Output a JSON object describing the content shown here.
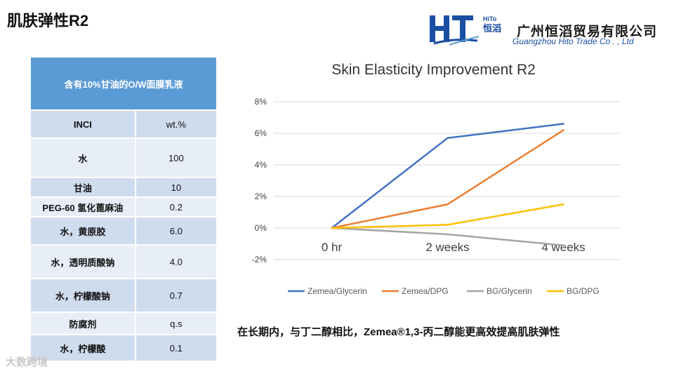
{
  "page": {
    "title": "肌肤弹性R2"
  },
  "logo": {
    "mark": "HT",
    "hito_top": "HiTo",
    "hito_cn": "恒滔",
    "cn": "广州恒滔贸易有限公司",
    "en": "Guangzhou Hito Trade Co . , Ltd"
  },
  "formula_table": {
    "title": "含有10%甘油的O/W面膜乳液",
    "header": [
      "INCI",
      "wt.%"
    ],
    "rows": [
      [
        "水",
        "100"
      ],
      [
        "甘油",
        "10"
      ],
      [
        "PEG-60 氢化蓖麻油",
        "0.2"
      ],
      [
        "水，黄原胶",
        "6.0"
      ],
      [
        "水，透明质酸钠",
        "4.0"
      ],
      [
        "水，柠檬酸钠",
        "0.7"
      ],
      [
        "防腐剂",
        "q.s"
      ],
      [
        "水，柠檬酸",
        "0.1"
      ]
    ]
  },
  "chart_data": {
    "type": "line",
    "title": "Skin Elasticity Improvement R2",
    "categories": [
      "0 hr",
      "2 weeks",
      "4 weeks"
    ],
    "series": [
      {
        "name": "Zemea/Glycerin",
        "color": "#4472c4",
        "values": [
          0.0,
          5.7,
          6.6
        ]
      },
      {
        "name": "Zemea/DPG",
        "color": "#ed7d31",
        "values": [
          0.0,
          1.5,
          6.2
        ]
      },
      {
        "name": "BG/Glycerin",
        "color": "#a5a5a5",
        "values": [
          0.0,
          -0.4,
          -1.1
        ]
      },
      {
        "name": "BG/DPG",
        "color": "#ffc000",
        "values": [
          0.0,
          0.2,
          1.5
        ]
      }
    ],
    "y_ticks": [
      "8%",
      "6%",
      "4%",
      "2%",
      "0%",
      "-2%"
    ],
    "ylim": [
      -2,
      8
    ],
    "xlabel": "",
    "ylabel": "",
    "grid": true,
    "legend": "bottom"
  },
  "conclusion": "在长期内，与丁二醇相比，Zemea®1,3-丙二醇能更高效提高肌肤弹性",
  "watermark": "大数跨境"
}
